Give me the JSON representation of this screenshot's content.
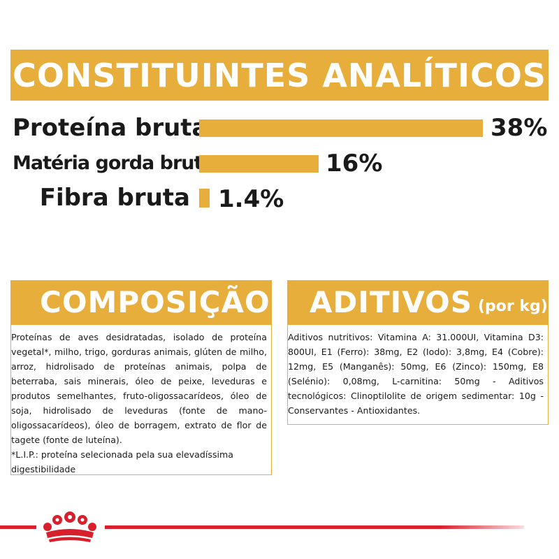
{
  "analytics": {
    "title": "CONSTITUINTES ANALÍTICOS",
    "items": [
      {
        "label": "Proteína bruta",
        "value_label": "38%",
        "value": 38
      },
      {
        "label": "Matéria gorda bruta",
        "value_label": "16%",
        "value": 16
      },
      {
        "label": "Fibra bruta",
        "value_label": "1.4%",
        "value": 1.4
      }
    ],
    "bar_color": "#e7ae3c"
  },
  "composition": {
    "title": "COMPOSIÇÃO",
    "text": "Proteínas de aves desidratadas, isolado de proteína vegetal*, milho, trigo, gorduras animais, glúten de milho, arroz, hidrolisado de proteínas animais, polpa de beterraba, sais minerais, óleo de peixe, leveduras e produtos semelhantes, fruto-oligossacarídeos, óleo de soja, hidrolisado de leveduras (fonte de mano-oligossacarídeos), óleo de borragem, extrato de flor de tagete (fonte de luteína).",
    "note": "*L.I.P.: proteína selecionada pela sua elevadíssima digestibilidade"
  },
  "additives": {
    "title": "ADITIVOS",
    "unit": "(por kg)",
    "text": "Aditivos nutritivos: Vitamina A: 31.000UI, Vitamina D3: 800UI, E1 (Ferro): 38mg, E2 (Iodo): 3,8mg, E4 (Cobre): 12mg, E5 (Manganês): 50mg, E6 (Zinco): 150mg, E8 (Selénio): 0,08mg, L-carnitina: 50mg - Aditivos tecnológicos: Clinoptilolite de origem sedimentar: 10g - Conservantes - Antioxidantes."
  },
  "brand": {
    "logo_icon": "royal-canin-crown-icon",
    "color": "#d8202c"
  },
  "theme": {
    "accent": "#e7ae3c"
  }
}
